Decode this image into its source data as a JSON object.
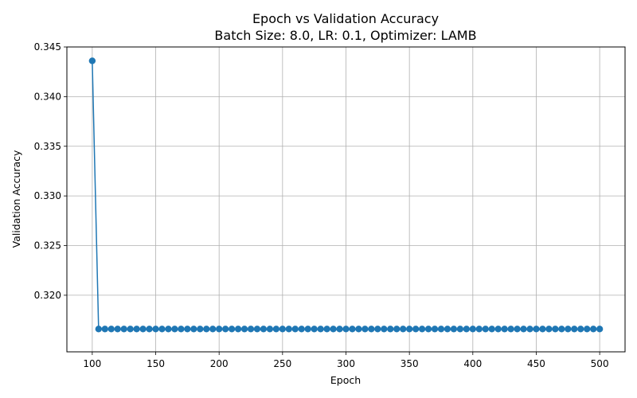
{
  "chart_data": {
    "type": "line",
    "title": "Epoch vs Validation Accuracy",
    "subtitle": "Batch Size: 8.0, LR: 0.1, Optimizer: LAMB",
    "xlabel": "Epoch",
    "ylabel": "Validation Accuracy",
    "xlim": [
      80,
      520
    ],
    "ylim": [
      0.3143,
      0.345
    ],
    "grid": true,
    "x_ticks": [
      100,
      150,
      200,
      250,
      300,
      350,
      400,
      450,
      500
    ],
    "y_ticks": [
      0.32,
      0.325,
      0.33,
      0.335,
      0.34,
      0.345
    ],
    "y_tick_labels": [
      "0.320",
      "0.325",
      "0.330",
      "0.335",
      "0.340",
      "0.345"
    ],
    "series": [
      {
        "color": "#1f77b4",
        "marker": "circle",
        "x": [
          100,
          105,
          110,
          115,
          120,
          125,
          130,
          135,
          140,
          145,
          150,
          155,
          160,
          165,
          170,
          175,
          180,
          185,
          190,
          195,
          200,
          205,
          210,
          215,
          220,
          225,
          230,
          235,
          240,
          245,
          250,
          255,
          260,
          265,
          270,
          275,
          280,
          285,
          290,
          295,
          300,
          305,
          310,
          315,
          320,
          325,
          330,
          335,
          340,
          345,
          350,
          355,
          360,
          365,
          370,
          375,
          380,
          385,
          390,
          395,
          400,
          405,
          410,
          415,
          420,
          425,
          430,
          435,
          440,
          445,
          450,
          455,
          460,
          465,
          470,
          475,
          480,
          485,
          490,
          495,
          500
        ],
        "y": [
          0.3436,
          0.3166,
          0.3166,
          0.3166,
          0.3166,
          0.3166,
          0.3166,
          0.3166,
          0.3166,
          0.3166,
          0.3166,
          0.3166,
          0.3166,
          0.3166,
          0.3166,
          0.3166,
          0.3166,
          0.3166,
          0.3166,
          0.3166,
          0.3166,
          0.3166,
          0.3166,
          0.3166,
          0.3166,
          0.3166,
          0.3166,
          0.3166,
          0.3166,
          0.3166,
          0.3166,
          0.3166,
          0.3166,
          0.3166,
          0.3166,
          0.3166,
          0.3166,
          0.3166,
          0.3166,
          0.3166,
          0.3166,
          0.3166,
          0.3166,
          0.3166,
          0.3166,
          0.3166,
          0.3166,
          0.3166,
          0.3166,
          0.3166,
          0.3166,
          0.3166,
          0.3166,
          0.3166,
          0.3166,
          0.3166,
          0.3166,
          0.3166,
          0.3166,
          0.3166,
          0.3166,
          0.3166,
          0.3166,
          0.3166,
          0.3166,
          0.3166,
          0.3166,
          0.3166,
          0.3166,
          0.3166,
          0.3166,
          0.3166,
          0.3166,
          0.3166,
          0.3166,
          0.3166,
          0.3166,
          0.3166,
          0.3166,
          0.3166,
          0.3166
        ]
      }
    ]
  }
}
